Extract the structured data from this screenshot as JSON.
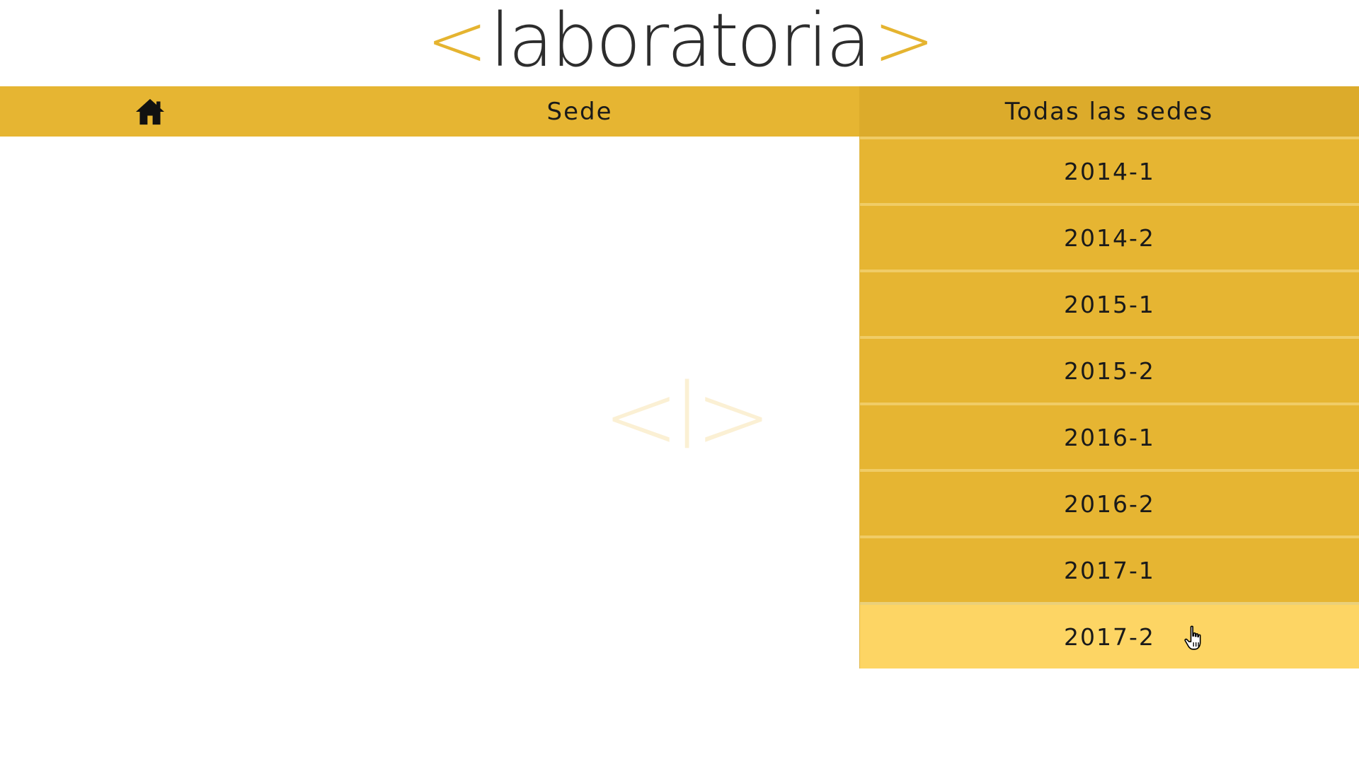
{
  "logo": {
    "bracket_open": "<",
    "word": "laboratoria",
    "bracket_close": ">"
  },
  "navbar": {
    "home_icon": "home-icon",
    "sede_label": "Sede",
    "dropdown_label": "Todas las sedes"
  },
  "dropdown": {
    "items": [
      {
        "label": "2014-1"
      },
      {
        "label": "2014-2"
      },
      {
        "label": "2015-1"
      },
      {
        "label": "2015-2"
      },
      {
        "label": "2016-1"
      },
      {
        "label": "2016-2"
      },
      {
        "label": "2017-1"
      },
      {
        "label": "2017-2"
      }
    ],
    "hovered_index": 7
  },
  "watermark": "<l>",
  "colors": {
    "accent": "#e6b532",
    "accent_dark": "#dcab2b",
    "hover": "#fdd564",
    "text": "#1a1a1a",
    "logo_text": "#2d2d2d"
  }
}
